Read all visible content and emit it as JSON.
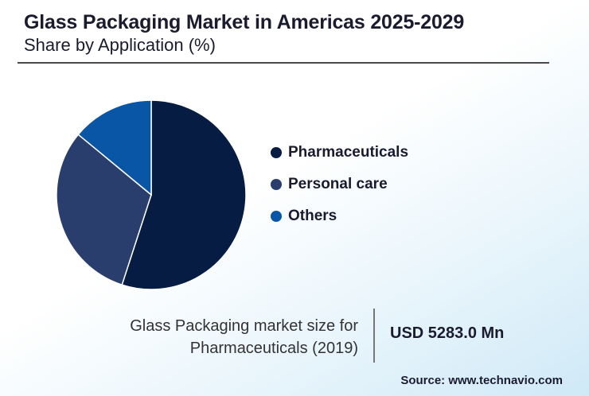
{
  "header": {
    "title": "Glass Packaging Market in Americas 2025-2029",
    "subtitle": "Share by Application (%)"
  },
  "chart_data": {
    "type": "pie",
    "categories": [
      "Pharmaceuticals",
      "Personal care",
      "Others"
    ],
    "values": [
      55,
      31,
      14
    ],
    "colors": [
      "#071c42",
      "#2a3e6e",
      "#0a56a6"
    ],
    "legend_position": "right"
  },
  "legend": {
    "items": [
      {
        "label": "Pharmaceuticals",
        "color": "#071c42"
      },
      {
        "label": "Personal care",
        "color": "#2a3e6e"
      },
      {
        "label": "Others",
        "color": "#0a56a6"
      }
    ]
  },
  "stat": {
    "label_line1": "Glass Packaging market size for",
    "label_line2": "Pharmaceuticals (2019)",
    "value": "USD 5283.0 Mn"
  },
  "footer": {
    "source": "Source: www.technavio.com"
  }
}
